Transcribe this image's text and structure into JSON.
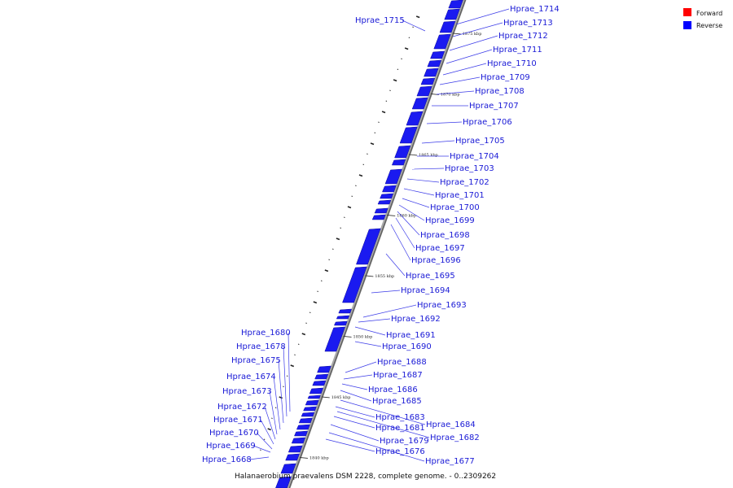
{
  "title": "Halanaerobium praevalens DSM 2228, complete genome. - 0..2309262",
  "legend": [
    {
      "label": "Forward",
      "color": "#ff0000"
    },
    {
      "label": "Reverse",
      "color": "#0000ff"
    }
  ],
  "colors": {
    "reverse": "#1a1af0",
    "label": "#1a1ad6",
    "leader": "#3b3be8",
    "backbone": "#808080"
  },
  "scale_ticks": [
    {
      "label": "1875 kbp",
      "pos": 1875
    },
    {
      "label": "1870 kbp",
      "pos": 1870
    },
    {
      "label": "1865 kbp",
      "pos": 1865
    },
    {
      "label": "1860 kbp",
      "pos": 1860
    },
    {
      "label": "1855 kbp",
      "pos": 1855
    },
    {
      "label": "1850 kbp",
      "pos": 1850
    },
    {
      "label": "1845 kbp",
      "pos": 1845
    },
    {
      "label": "1840 kbp",
      "pos": 1840
    }
  ],
  "genes": [
    {
      "label": "Hprae_1715"
    },
    {
      "label": "Hprae_1714"
    },
    {
      "label": "Hprae_1713"
    },
    {
      "label": "Hprae_1712"
    },
    {
      "label": "Hprae_1711"
    },
    {
      "label": "Hprae_1710"
    },
    {
      "label": "Hprae_1709"
    },
    {
      "label": "Hprae_1708"
    },
    {
      "label": "Hprae_1707"
    },
    {
      "label": "Hprae_1706"
    },
    {
      "label": "Hprae_1705"
    },
    {
      "label": "Hprae_1704"
    },
    {
      "label": "Hprae_1703"
    },
    {
      "label": "Hprae_1702"
    },
    {
      "label": "Hprae_1701"
    },
    {
      "label": "Hprae_1700"
    },
    {
      "label": "Hprae_1699"
    },
    {
      "label": "Hprae_1698"
    },
    {
      "label": "Hprae_1697"
    },
    {
      "label": "Hprae_1696"
    },
    {
      "label": "Hprae_1695"
    },
    {
      "label": "Hprae_1694"
    },
    {
      "label": "Hprae_1693"
    },
    {
      "label": "Hprae_1692"
    },
    {
      "label": "Hprae_1691"
    },
    {
      "label": "Hprae_1690"
    },
    {
      "label": "Hprae_1688"
    },
    {
      "label": "Hprae_1687"
    },
    {
      "label": "Hprae_1686"
    },
    {
      "label": "Hprae_1685"
    },
    {
      "label": "Hprae_1684"
    },
    {
      "label": "Hprae_1683"
    },
    {
      "label": "Hprae_1682"
    },
    {
      "label": "Hprae_1681"
    },
    {
      "label": "Hprae_1680"
    },
    {
      "label": "Hprae_1679"
    },
    {
      "label": "Hprae_1678"
    },
    {
      "label": "Hprae_1677"
    },
    {
      "label": "Hprae_1676"
    },
    {
      "label": "Hprae_1675"
    },
    {
      "label": "Hprae_1674"
    },
    {
      "label": "Hprae_1673"
    },
    {
      "label": "Hprae_1672"
    },
    {
      "label": "Hprae_1671"
    },
    {
      "label": "Hprae_1670"
    },
    {
      "label": "Hprae_1669"
    },
    {
      "label": "Hprae_1668"
    }
  ]
}
